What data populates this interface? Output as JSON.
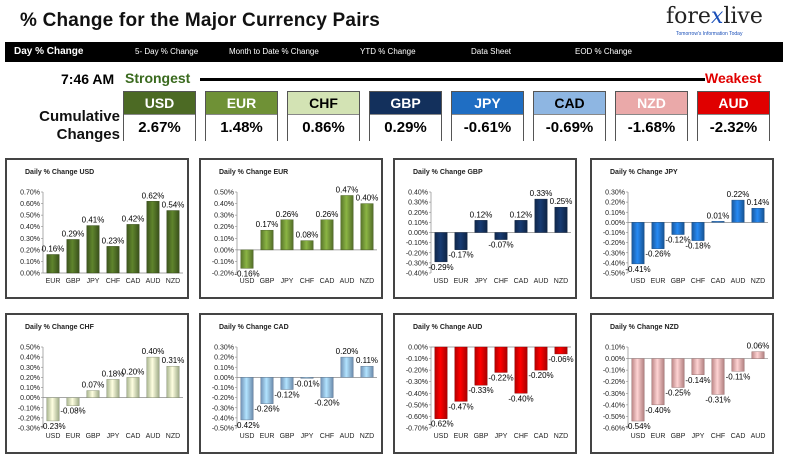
{
  "page": {
    "title": "% Change for the Major Currency Pairs",
    "logo_text_left": "fore",
    "logo_text_x": "x",
    "logo_text_right": "live",
    "logo_tagline": "Tomorrow's Information Today"
  },
  "nav": {
    "items": [
      "Day % Change",
      "5- Day % Change",
      "Month to Date % Change",
      "YTD % Change",
      "Data Sheet",
      "EOD % Change"
    ]
  },
  "summary": {
    "time": "7:46 AM",
    "strongest": "Strongest",
    "weakest": "Weakest",
    "cumulative_label_1": "Cumulative",
    "cumulative_label_2": "Changes",
    "currencies": [
      {
        "code": "USD",
        "value": "2.67%",
        "color": "#4c6a24",
        "text_color": "#ffffff"
      },
      {
        "code": "EUR",
        "value": "1.48%",
        "color": "#6f9136",
        "text_color": "#ffffff"
      },
      {
        "code": "CHF",
        "value": "0.86%",
        "color": "#d3e3b4",
        "text_color": "#000000"
      },
      {
        "code": "GBP",
        "value": "0.29%",
        "color": "#13305c",
        "text_color": "#ffffff"
      },
      {
        "code": "JPY",
        "value": "-0.61%",
        "color": "#1f6ec3",
        "text_color": "#ffffff"
      },
      {
        "code": "CAD",
        "value": "-0.69%",
        "color": "#8eb6e2",
        "text_color": "#000000"
      },
      {
        "code": "NZD",
        "value": "-1.68%",
        "color": "#eaa9a9",
        "text_color": "#ffffff"
      },
      {
        "code": "AUD",
        "value": "-2.32%",
        "color": "#e00000",
        "text_color": "#ffffff"
      }
    ]
  },
  "chart_data": [
    {
      "type": "bar",
      "title": "Daily % Change USD",
      "categories": [
        "EUR",
        "GBP",
        "JPY",
        "CHF",
        "CAD",
        "AUD",
        "NZD"
      ],
      "values": [
        0.16,
        0.29,
        0.41,
        0.23,
        0.42,
        0.62,
        0.54
      ],
      "labels": [
        "0.16%",
        "0.29%",
        "0.41%",
        "0.23%",
        "0.42%",
        "0.62%",
        "0.54%"
      ],
      "yticks": [
        "0.00%",
        "0.10%",
        "0.20%",
        "0.30%",
        "0.40%",
        "0.50%",
        "0.60%",
        "0.70%"
      ],
      "ylim": [
        0,
        0.7
      ],
      "color": "#4c6a24"
    },
    {
      "type": "bar",
      "title": "Daily % Change EUR",
      "categories": [
        "USD",
        "GBP",
        "JPY",
        "CHF",
        "CAD",
        "AUD",
        "NZD"
      ],
      "values": [
        -0.16,
        0.17,
        0.26,
        0.08,
        0.26,
        0.47,
        0.4
      ],
      "labels": [
        "-0.16%",
        "0.17%",
        "0.26%",
        "0.08%",
        "0.26%",
        "0.47%",
        "0.40%"
      ],
      "yticks": [
        "-0.20%",
        "-0.10%",
        "0.00%",
        "0.10%",
        "0.20%",
        "0.30%",
        "0.40%",
        "0.50%"
      ],
      "ylim": [
        -0.2,
        0.5
      ],
      "color": "#6f9136"
    },
    {
      "type": "bar",
      "title": "Daily % Change GBP",
      "categories": [
        "USD",
        "EUR",
        "JPY",
        "CHF",
        "CAD",
        "AUD",
        "NZD"
      ],
      "values": [
        -0.29,
        -0.17,
        0.12,
        -0.07,
        0.12,
        0.33,
        0.25
      ],
      "labels": [
        "-0.29%",
        "-0.17%",
        "0.12%",
        "-0.07%",
        "0.12%",
        "0.33%",
        "0.25%"
      ],
      "yticks": [
        "-0.40%",
        "-0.30%",
        "-0.20%",
        "-0.10%",
        "0.00%",
        "0.10%",
        "0.20%",
        "0.30%",
        "0.40%"
      ],
      "ylim": [
        -0.4,
        0.4
      ],
      "color": "#13305c"
    },
    {
      "type": "bar",
      "title": "Daily % Change JPY",
      "categories": [
        "USD",
        "EUR",
        "GBP",
        "CHF",
        "CAD",
        "AUD",
        "NZD"
      ],
      "values": [
        -0.41,
        -0.26,
        -0.12,
        -0.18,
        0.01,
        0.22,
        0.14
      ],
      "labels": [
        "-0.41%",
        "-0.26%",
        "-0.12%",
        "-0.18%",
        "0.01%",
        "0.22%",
        "0.14%"
      ],
      "yticks": [
        "-0.50%",
        "-0.40%",
        "-0.30%",
        "-0.20%",
        "-0.10%",
        "0.00%",
        "0.10%",
        "0.20%",
        "0.30%"
      ],
      "ylim": [
        -0.5,
        0.3
      ],
      "color": "#1f6ec3"
    },
    {
      "type": "bar",
      "title": "Daily % Change CHF",
      "categories": [
        "USD",
        "EUR",
        "GBP",
        "JPY",
        "CAD",
        "AUD",
        "NZD"
      ],
      "values": [
        -0.23,
        -0.08,
        0.07,
        0.18,
        0.2,
        0.4,
        0.31
      ],
      "labels": [
        "-0.23%",
        "-0.08%",
        "0.07%",
        "0.18%",
        "0.20%",
        "0.40%",
        "0.31%"
      ],
      "yticks": [
        "-0.30%",
        "-0.20%",
        "-0.10%",
        "0.00%",
        "0.10%",
        "0.20%",
        "0.30%",
        "0.40%",
        "0.50%"
      ],
      "ylim": [
        -0.3,
        0.5
      ],
      "color": "#d3e3b4"
    },
    {
      "type": "bar",
      "title": "Daily % Change CAD",
      "categories": [
        "USD",
        "EUR",
        "GBP",
        "JPY",
        "CHF",
        "AUD",
        "NZD"
      ],
      "values": [
        -0.42,
        -0.26,
        -0.12,
        -0.01,
        -0.2,
        0.2,
        0.11
      ],
      "labels": [
        "-0.42%",
        "-0.26%",
        "-0.12%",
        "-0.01%",
        "-0.20%",
        "0.20%",
        "0.11%"
      ],
      "yticks": [
        "-0.50%",
        "-0.40%",
        "-0.30%",
        "-0.20%",
        "-0.10%",
        "0.00%",
        "0.10%",
        "0.20%",
        "0.30%"
      ],
      "ylim": [
        -0.5,
        0.3
      ],
      "color": "#8eb6e2"
    },
    {
      "type": "bar",
      "title": "Daily % Change AUD",
      "categories": [
        "USD",
        "EUR",
        "GBP",
        "JPY",
        "CHF",
        "CAD",
        "NZD"
      ],
      "values": [
        -0.62,
        -0.47,
        -0.33,
        -0.22,
        -0.4,
        -0.2,
        -0.06
      ],
      "labels": [
        "-0.62%",
        "-0.47%",
        "-0.33%",
        "-0.22%",
        "-0.40%",
        "-0.20%",
        "-0.06%"
      ],
      "yticks": [
        "-0.70%",
        "-0.60%",
        "-0.50%",
        "-0.40%",
        "-0.30%",
        "-0.20%",
        "-0.10%",
        "0.00%"
      ],
      "ylim": [
        -0.7,
        0
      ],
      "color": "#e00000"
    },
    {
      "type": "bar",
      "title": "Daily % Change NZD",
      "categories": [
        "USD",
        "EUR",
        "GBP",
        "JPY",
        "CHF",
        "CAD",
        "AUD"
      ],
      "values": [
        -0.54,
        -0.4,
        -0.25,
        -0.14,
        -0.31,
        -0.11,
        0.06
      ],
      "labels": [
        "-0.54%",
        "-0.40%",
        "-0.25%",
        "-0.14%",
        "-0.31%",
        "-0.11%",
        "0.06%"
      ],
      "yticks": [
        "-0.60%",
        "-0.50%",
        "-0.40%",
        "-0.30%",
        "-0.20%",
        "-0.10%",
        "0.00%",
        "0.10%"
      ],
      "ylim": [
        -0.6,
        0.1
      ],
      "color": "#eaa9a9"
    }
  ]
}
